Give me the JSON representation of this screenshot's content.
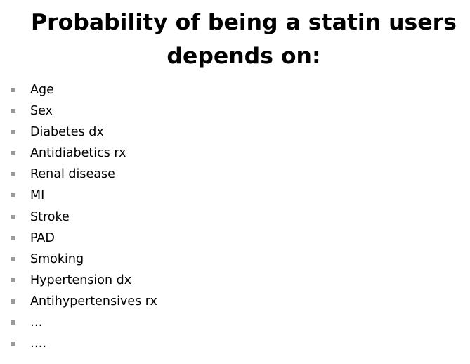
{
  "slide": {
    "title_line1": "Probability of being a statin users",
    "title_line2": "depends on:",
    "items": [
      "Age",
      "Sex",
      "Diabetes dx",
      "Antidiabetics rx",
      "Renal disease",
      "MI",
      "Stroke",
      "PAD",
      "Smoking",
      "Hypertension dx",
      "Antihypertensives rx",
      "…",
      "…."
    ],
    "bullet_color": "#9a9a9a"
  }
}
